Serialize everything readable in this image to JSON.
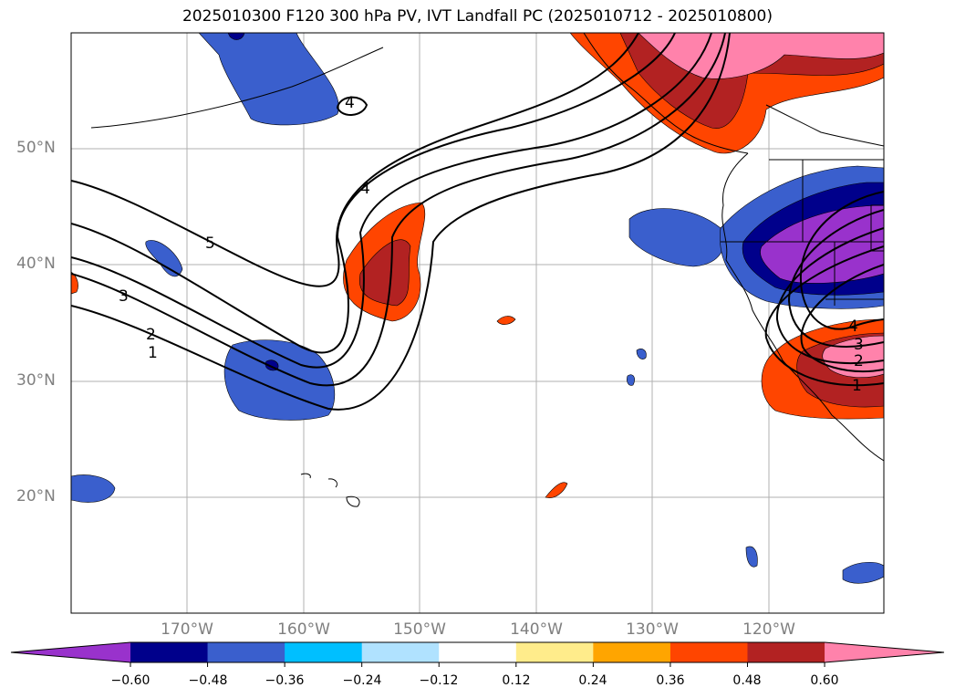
{
  "title": "2025010300 F120 300 hPa PV, IVT Landfall PC (2025010712 - 2025010800)",
  "lat_labels": [
    "50°N",
    "40°N",
    "30°N",
    "20°N"
  ],
  "lon_labels": [
    "170°W",
    "160°W",
    "150°W",
    "140°W",
    "130°W",
    "120°W"
  ],
  "contour_labels": [
    "1",
    "2",
    "3",
    "4",
    "5",
    "4",
    "4",
    "3",
    "2",
    "1"
  ],
  "colorbar": {
    "colors": [
      "#9932cc",
      "#00008b",
      "#3a5fcd",
      "#00bfff",
      "#b0e2ff",
      "#ffffff",
      "#ffec8b",
      "#ffa500",
      "#ff4500",
      "#b22222",
      "#ff82ab"
    ],
    "tick_labels": [
      "−0.60",
      "−0.48",
      "−0.36",
      "−0.24",
      "−0.12",
      "0.12",
      "0.24",
      "0.36",
      "0.48",
      "0.60"
    ]
  }
}
